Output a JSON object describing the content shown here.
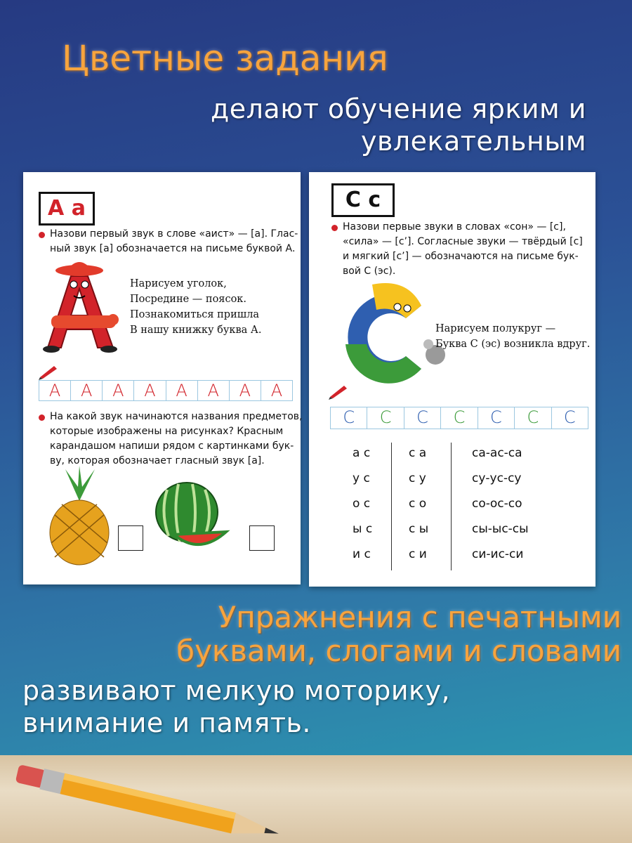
{
  "header": {
    "title": "Цветные задания",
    "subtitle": [
      "делают обучение ярким и",
      "увлекательным"
    ]
  },
  "left_page": {
    "letter": "А а",
    "task1": [
      "Назови первый звук в слове «аист» — [а]. Глас-",
      "ный звук [а] обозначается на письме буквой А."
    ],
    "poem": [
      "Нарисуем уголок,",
      "Посредине — поясок.",
      "Познакомиться пришла",
      "В нашу книжку буква А."
    ],
    "tracing": [
      "А",
      "А",
      "А",
      "А",
      "А",
      "А",
      "А",
      "А"
    ],
    "task2": [
      "На какой звук начинаются названия предметов,",
      "которые изображены на рисунках? Красным",
      "карандашом напиши рядом с картинками бук-",
      "ву, которая обозначает гласный звук [а]."
    ]
  },
  "right_page": {
    "letter": "С с",
    "task": [
      "Назови первые звуки в словах «сон» — [с],",
      "«сила» — [с’]. Согласные звуки — твёрдый [с]",
      "и мягкий [с’] — обозначаются на письме бук-",
      "вой С (эс)."
    ],
    "poem": [
      "Нарисуем полукруг —",
      "Буква С (эс) возникла вдруг."
    ],
    "tracing": [
      "С",
      "С",
      "С",
      "С",
      "С",
      "С",
      "С"
    ],
    "syllables": [
      [
        "а с",
        "с а",
        "са-ас-са"
      ],
      [
        "у с",
        "с у",
        "су-ус-су"
      ],
      [
        "о с",
        "с о",
        "со-ос-со"
      ],
      [
        "ы с",
        "с ы",
        "сы-ыс-сы"
      ],
      [
        "и с",
        "с и",
        "си-ис-си"
      ]
    ]
  },
  "footer": {
    "title": [
      "Упражнения с печатными",
      "буквами, слогами и словами"
    ],
    "subtitle": [
      "развивают мелкую моторику,",
      "внимание и память."
    ]
  }
}
